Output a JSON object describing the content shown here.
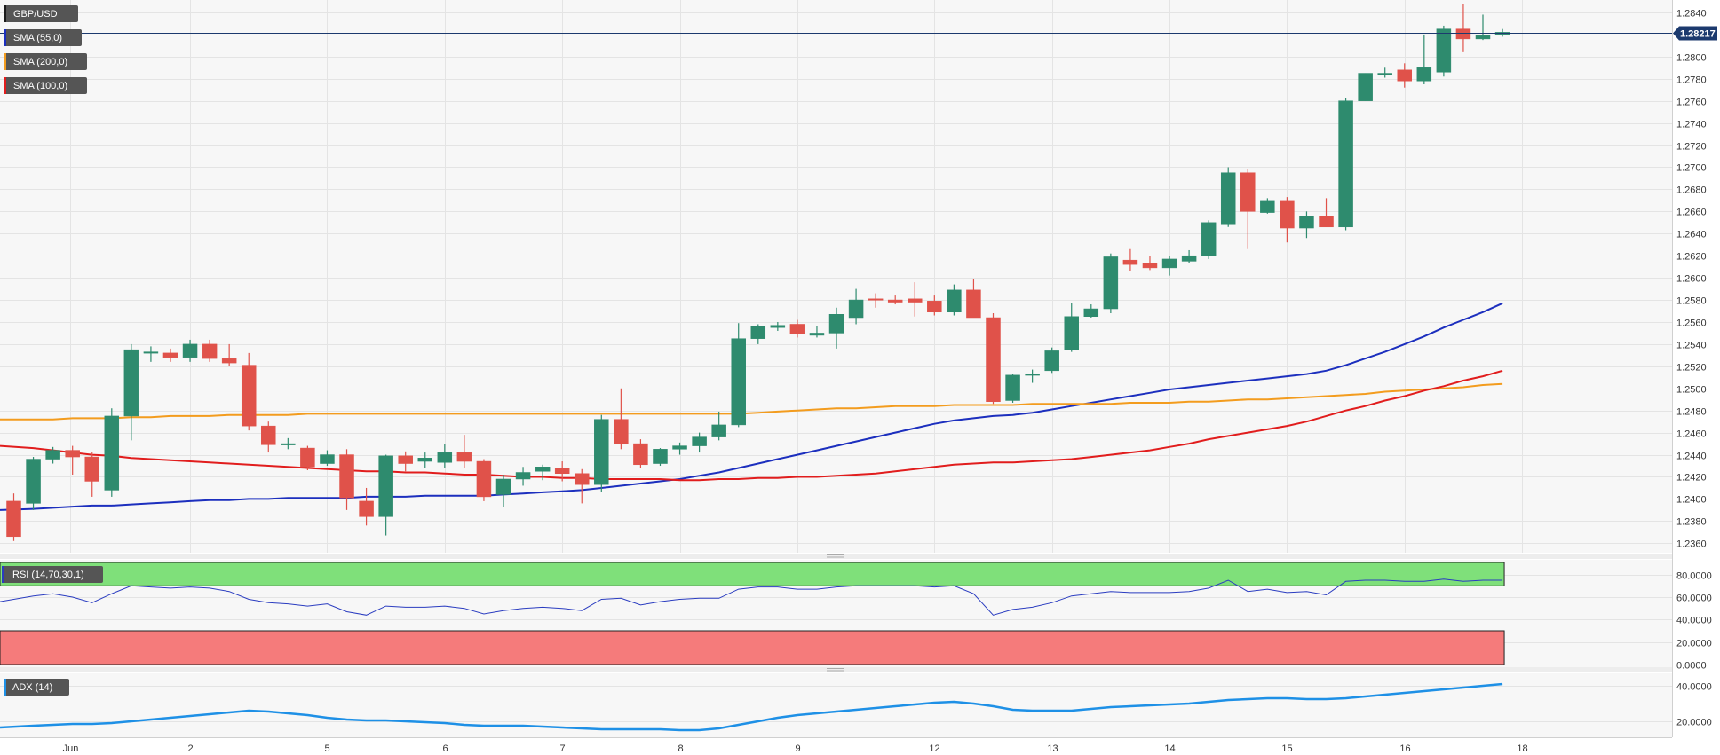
{
  "chart_data": {
    "type": "candlestick",
    "symbol": "GBP/USD",
    "price_panel": {
      "ylim": [
        1.2353,
        1.2848
      ],
      "y_ticks": [
        "1.2360",
        "1.2380",
        "1.2400",
        "1.2420",
        "1.2440",
        "1.2460",
        "1.2480",
        "1.2500",
        "1.2520",
        "1.2540",
        "1.2560",
        "1.2580",
        "1.2600",
        "1.2620",
        "1.2640",
        "1.2660",
        "1.2680",
        "1.2700",
        "1.2720",
        "1.2740",
        "1.2760",
        "1.2780",
        "1.2800",
        "1.2840"
      ],
      "current_price": 1.28217,
      "current_price_label": "1.28217",
      "x_labels": [
        {
          "i": 3,
          "label": "Jun"
        },
        {
          "i": 9,
          "label": "2"
        },
        {
          "i": 16,
          "label": "5"
        },
        {
          "i": 22,
          "label": "6"
        },
        {
          "i": 28,
          "label": "7"
        },
        {
          "i": 34,
          "label": "8"
        },
        {
          "i": 40,
          "label": "9"
        },
        {
          "i": 47,
          "label": "12"
        },
        {
          "i": 53,
          "label": "13"
        },
        {
          "i": 59,
          "label": "14"
        },
        {
          "i": 65,
          "label": "15"
        },
        {
          "i": 71,
          "label": "16"
        },
        {
          "i": 77,
          "label": "18"
        }
      ],
      "candles": [
        [
          1.2398,
          1.2405,
          1.2362,
          1.2366
        ],
        [
          1.2396,
          1.2438,
          1.239,
          1.2436
        ],
        [
          1.2436,
          1.2447,
          1.2432,
          1.2444
        ],
        [
          1.2444,
          1.2448,
          1.2422,
          1.2438
        ],
        [
          1.2438,
          1.2442,
          1.2402,
          1.2416
        ],
        [
          1.2408,
          1.2482,
          1.2402,
          1.2475
        ],
        [
          1.2475,
          1.254,
          1.2453,
          1.2535
        ],
        [
          1.2533,
          1.2538,
          1.2524,
          1.2533
        ],
        [
          1.2532,
          1.2536,
          1.2524,
          1.2528
        ],
        [
          1.2528,
          1.2544,
          1.2524,
          1.254
        ],
        [
          1.254,
          1.2544,
          1.2524,
          1.2527
        ],
        [
          1.2527,
          1.254,
          1.252,
          1.2523
        ],
        [
          1.2521,
          1.2532,
          1.2462,
          1.2466
        ],
        [
          1.2466,
          1.247,
          1.2442,
          1.2449
        ],
        [
          1.245,
          1.2455,
          1.2445,
          1.245
        ],
        [
          1.2446,
          1.2448,
          1.2426,
          1.2429
        ],
        [
          1.2432,
          1.2444,
          1.243,
          1.244
        ],
        [
          1.244,
          1.2445,
          1.239,
          1.2401
        ],
        [
          1.2398,
          1.241,
          1.2376,
          1.2384
        ],
        [
          1.2384,
          1.244,
          1.2367,
          1.2439
        ],
        [
          1.2439,
          1.2443,
          1.2425,
          1.2432
        ],
        [
          1.2434,
          1.2442,
          1.2428,
          1.2437
        ],
        [
          1.2433,
          1.245,
          1.2428,
          1.2442
        ],
        [
          1.2442,
          1.2458,
          1.2428,
          1.2434
        ],
        [
          1.2434,
          1.2436,
          1.2398,
          1.2402
        ],
        [
          1.2404,
          1.2422,
          1.2393,
          1.2418
        ],
        [
          1.2418,
          1.2429,
          1.2412,
          1.2424
        ],
        [
          1.2425,
          1.2431,
          1.2417,
          1.2429
        ],
        [
          1.2428,
          1.2434,
          1.2416,
          1.2423
        ],
        [
          1.2423,
          1.2427,
          1.2396,
          1.2413
        ],
        [
          1.2413,
          1.2476,
          1.2406,
          1.2472
        ],
        [
          1.2472,
          1.25,
          1.2445,
          1.245
        ],
        [
          1.245,
          1.2454,
          1.2428,
          1.2431
        ],
        [
          1.2432,
          1.2446,
          1.243,
          1.2445
        ],
        [
          1.2445,
          1.2451,
          1.244,
          1.2448
        ],
        [
          1.2448,
          1.246,
          1.2442,
          1.2456
        ],
        [
          1.2456,
          1.2479,
          1.2453,
          1.2467
        ],
        [
          1.2467,
          1.2559,
          1.2465,
          1.2545
        ],
        [
          1.2545,
          1.2558,
          1.254,
          1.2556
        ],
        [
          1.2555,
          1.256,
          1.2552,
          1.2557
        ],
        [
          1.2558,
          1.2562,
          1.2546,
          1.2549
        ],
        [
          1.2548,
          1.2556,
          1.2546,
          1.255
        ],
        [
          1.255,
          1.2573,
          1.2536,
          1.2567
        ],
        [
          1.2564,
          1.259,
          1.2558,
          1.258
        ],
        [
          1.2581,
          1.2586,
          1.2573,
          1.258
        ],
        [
          1.258,
          1.2584,
          1.2576,
          1.2578
        ],
        [
          1.2581,
          1.2596,
          1.2565,
          1.2578
        ],
        [
          1.2579,
          1.2584,
          1.2566,
          1.2569
        ],
        [
          1.2569,
          1.2594,
          1.2566,
          1.2589
        ],
        [
          1.2589,
          1.2599,
          1.2564,
          1.2564
        ],
        [
          1.2564,
          1.2568,
          1.2486,
          1.2488
        ],
        [
          1.2489,
          1.2513,
          1.2487,
          1.2512
        ],
        [
          1.2512,
          1.2517,
          1.2505,
          1.2513
        ],
        [
          1.2516,
          1.2537,
          1.2514,
          1.2534
        ],
        [
          1.2535,
          1.2577,
          1.2533,
          1.2565
        ],
        [
          1.2565,
          1.2576,
          1.2564,
          1.2572
        ],
        [
          1.2572,
          1.2622,
          1.2568,
          1.2619
        ],
        [
          1.2616,
          1.2626,
          1.2606,
          1.2612
        ],
        [
          1.2613,
          1.262,
          1.2607,
          1.2609
        ],
        [
          1.2609,
          1.262,
          1.2602,
          1.2617
        ],
        [
          1.2615,
          1.2625,
          1.2613,
          1.262
        ],
        [
          1.262,
          1.2652,
          1.2617,
          1.265
        ],
        [
          1.2648,
          1.27,
          1.2646,
          1.2695
        ],
        [
          1.2695,
          1.2698,
          1.2626,
          1.266
        ],
        [
          1.2659,
          1.2672,
          1.2658,
          1.267
        ],
        [
          1.267,
          1.2673,
          1.2632,
          1.2645
        ],
        [
          1.2645,
          1.266,
          1.2636,
          1.2656
        ],
        [
          1.2656,
          1.2672,
          1.2646,
          1.2646
        ],
        [
          1.2646,
          1.2763,
          1.2643,
          1.276
        ],
        [
          1.276,
          1.2785,
          1.276,
          1.2785
        ],
        [
          1.2785,
          1.279,
          1.2781,
          1.2785
        ],
        [
          1.2788,
          1.2794,
          1.2772,
          1.2778
        ],
        [
          1.2778,
          1.282,
          1.2775,
          1.279
        ],
        [
          1.2786,
          1.2828,
          1.2782,
          1.2825
        ],
        [
          1.2825,
          1.2848,
          1.2804,
          1.2816
        ],
        [
          1.2816,
          1.2838,
          1.2815,
          1.2819
        ],
        [
          1.282,
          1.2825,
          1.2818,
          1.2822
        ]
      ],
      "series": [
        {
          "name": "SMA (55,0)",
          "color": "#1c2fbe",
          "values": [
            1.239,
            1.2391,
            1.2392,
            1.2393,
            1.2394,
            1.2394,
            1.2395,
            1.2396,
            1.2397,
            1.2398,
            1.2399,
            1.2399,
            1.24,
            1.24,
            1.2401,
            1.2401,
            1.2401,
            1.2401,
            1.2402,
            1.2402,
            1.2402,
            1.2403,
            1.2403,
            1.2403,
            1.2403,
            1.2404,
            1.2405,
            1.2406,
            1.2407,
            1.2408,
            1.241,
            1.2412,
            1.2414,
            1.2416,
            1.2418,
            1.2421,
            1.2424,
            1.2428,
            1.2432,
            1.2436,
            1.244,
            1.2444,
            1.2448,
            1.2452,
            1.2456,
            1.246,
            1.2464,
            1.2468,
            1.2471,
            1.2473,
            1.2475,
            1.2476,
            1.2478,
            1.2481,
            1.2484,
            1.2487,
            1.249,
            1.2493,
            1.2496,
            1.2499,
            1.2501,
            1.2503,
            1.2505,
            1.2507,
            1.2509,
            1.2511,
            1.2513,
            1.2516,
            1.2521,
            1.2527,
            1.2533,
            1.254,
            1.2547,
            1.2555,
            1.2562,
            1.2569,
            1.2577
          ]
        },
        {
          "name": "SMA (200,0)",
          "color": "#f39c1e",
          "values": [
            1.2472,
            1.2472,
            1.2472,
            1.2473,
            1.2473,
            1.2473,
            1.2474,
            1.2474,
            1.2475,
            1.2475,
            1.2475,
            1.2476,
            1.2476,
            1.2476,
            1.2476,
            1.2477,
            1.2477,
            1.2477,
            1.2477,
            1.2477,
            1.2477,
            1.2477,
            1.2477,
            1.2477,
            1.2477,
            1.2477,
            1.2477,
            1.2477,
            1.2477,
            1.2477,
            1.2477,
            1.2477,
            1.2477,
            1.2477,
            1.2477,
            1.2477,
            1.2477,
            1.2477,
            1.2478,
            1.2479,
            1.248,
            1.2481,
            1.2482,
            1.2482,
            1.2483,
            1.2484,
            1.2484,
            1.2484,
            1.2485,
            1.2485,
            1.2485,
            1.2485,
            1.2486,
            1.2486,
            1.2486,
            1.2486,
            1.2486,
            1.2487,
            1.2487,
            1.2487,
            1.2488,
            1.2488,
            1.2489,
            1.249,
            1.249,
            1.2491,
            1.2492,
            1.2493,
            1.2494,
            1.2495,
            1.2497,
            1.2498,
            1.2499,
            1.25,
            1.2501,
            1.2503,
            1.2504
          ]
        },
        {
          "name": "SMA (100,0)",
          "color": "#e11d1d",
          "values": [
            1.2448,
            1.2446,
            1.2444,
            1.2442,
            1.244,
            1.2439,
            1.2437,
            1.2436,
            1.2435,
            1.2434,
            1.2433,
            1.2432,
            1.2431,
            1.243,
            1.2429,
            1.2428,
            1.2427,
            1.2426,
            1.2425,
            1.2425,
            1.2424,
            1.2424,
            1.2423,
            1.2422,
            1.2422,
            1.2421,
            1.242,
            1.242,
            1.2419,
            1.2419,
            1.2418,
            1.2418,
            1.2418,
            1.2418,
            1.2417,
            1.2417,
            1.2418,
            1.2418,
            1.2419,
            1.2419,
            1.242,
            1.242,
            1.2421,
            1.2422,
            1.2423,
            1.2425,
            1.2427,
            1.2429,
            1.2431,
            1.2432,
            1.2433,
            1.2433,
            1.2434,
            1.2435,
            1.2436,
            1.2438,
            1.244,
            1.2442,
            1.2444,
            1.2447,
            1.245,
            1.2454,
            1.2457,
            1.246,
            1.2463,
            1.2466,
            1.247,
            1.2475,
            1.248,
            1.2484,
            1.2489,
            1.2493,
            1.2498,
            1.2502,
            1.2507,
            1.2511,
            1.2516
          ]
        }
      ]
    },
    "rsi_panel": {
      "label": "RSI (14,70,30,1)",
      "ylim": [
        0,
        90
      ],
      "y_ticks": [
        "0.0000",
        "20.0000",
        "40.0000",
        "60.0000",
        "80.0000"
      ],
      "overbought": 70,
      "oversold": 30,
      "line_color": "#2a3cc0",
      "values": [
        56,
        61,
        63,
        60,
        55,
        63,
        70,
        69,
        68,
        69,
        68,
        65,
        58,
        55,
        54,
        52,
        54,
        47,
        44,
        52,
        51,
        51,
        52,
        50,
        45,
        48,
        50,
        51,
        50,
        48,
        58,
        59,
        53,
        56,
        58,
        59,
        59,
        67,
        69,
        69,
        67,
        67,
        69,
        70,
        70,
        70,
        70,
        69,
        70,
        63,
        44,
        49,
        51,
        55,
        61,
        63,
        65,
        64,
        64,
        64,
        65,
        68,
        75,
        65,
        67,
        64,
        65,
        62,
        74,
        75,
        75,
        74,
        74,
        76,
        74,
        75,
        75
      ]
    },
    "adx_panel": {
      "label": "ADX (14)",
      "ylim": [
        12,
        46
      ],
      "y_ticks": [
        "20.0000",
        "40.0000"
      ],
      "line_color": "#1e90e6",
      "values": [
        16.5,
        17.5,
        18,
        18.5,
        18.5,
        19,
        20,
        21,
        22,
        23,
        24,
        25,
        26,
        25.5,
        24.5,
        23.5,
        22,
        21,
        20.5,
        20.5,
        20,
        19.5,
        19,
        18,
        17.5,
        17.5,
        17.5,
        17,
        16.5,
        16,
        15.5,
        15.5,
        15.5,
        15.5,
        15,
        15,
        16,
        18,
        20,
        22,
        23.5,
        24.5,
        25.5,
        26.5,
        27.5,
        28.5,
        29.5,
        30.5,
        31,
        30,
        28.5,
        26.5,
        26,
        26,
        26,
        27,
        28,
        28.5,
        29,
        29.5,
        30,
        31,
        32,
        32.5,
        33,
        33,
        32.5,
        32.5,
        33,
        34,
        35,
        36,
        37,
        38,
        39,
        40,
        41
      ]
    },
    "legend": [
      {
        "label": "GBP/USD",
        "color": "#1a1a1a"
      },
      {
        "label": "SMA (55,0)",
        "color": "#1c2fbe"
      },
      {
        "label": "SMA (200,0)",
        "color": "#f39c1e"
      },
      {
        "label": "SMA (100,0)",
        "color": "#e11d1d"
      }
    ],
    "candle_colors": {
      "up": "#2e8b6e",
      "down": "#e0524a"
    },
    "grid": true
  }
}
